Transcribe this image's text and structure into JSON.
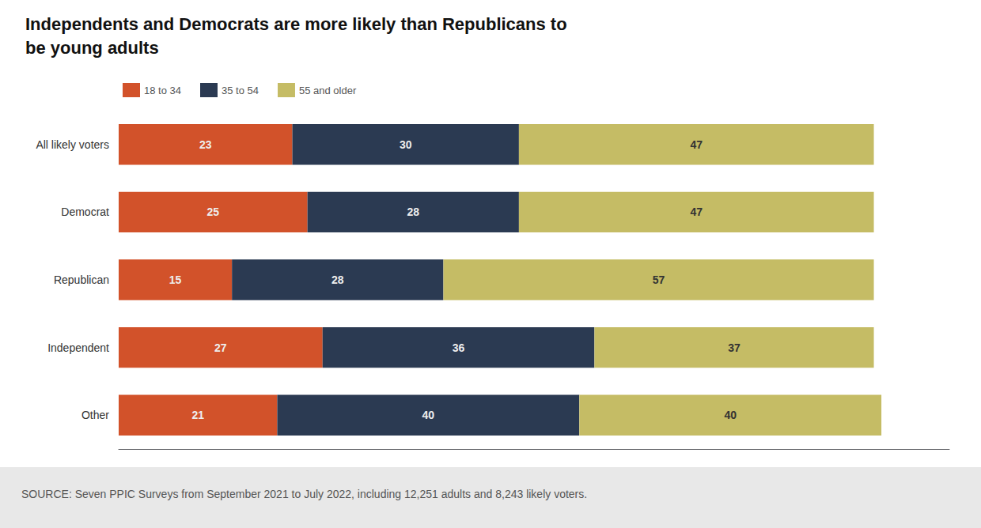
{
  "chart_data": {
    "type": "bar",
    "orientation": "horizontal",
    "stacked": true,
    "title": "Independents and Democrats are more likely than Republicans to\nbe young adults",
    "categories": [
      "All likely voters",
      "Democrat",
      "Republican",
      "Independent",
      "Other"
    ],
    "series": [
      {
        "name": "18 to 34",
        "color": "#D2522A",
        "values": [
          23,
          25,
          15,
          27,
          21
        ]
      },
      {
        "name": "35 to 54",
        "color": "#2B3A52",
        "values": [
          30,
          28,
          28,
          36,
          40
        ]
      },
      {
        "name": "55 and older",
        "color": "#C5BC65",
        "values": [
          47,
          47,
          57,
          37,
          40
        ]
      }
    ],
    "xlim": [
      0,
      110
    ],
    "data_labels": true,
    "tick_labels": "y",
    "grid": false,
    "legend": "top-left",
    "annotations": [
      "SOURCE: Seven PPIC Surveys from September 2021 to July 2022, including 12,251 adults and 8,243 likely voters."
    ]
  }
}
